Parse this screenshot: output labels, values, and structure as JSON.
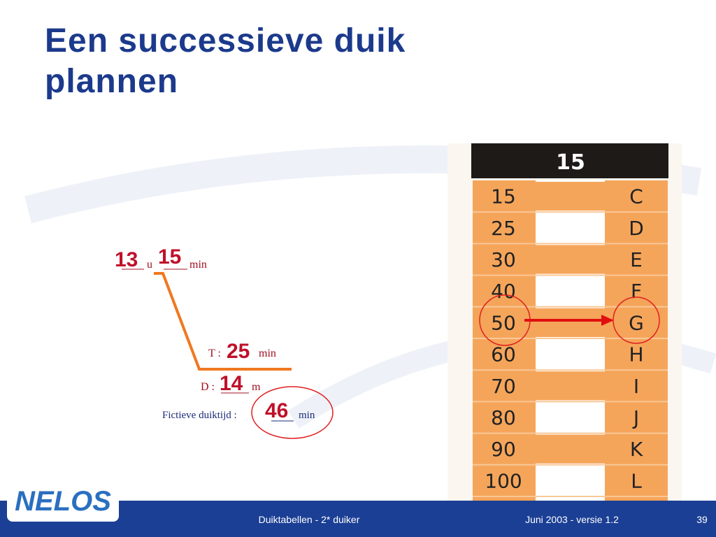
{
  "header": {
    "title": "Een successieve duik plannen"
  },
  "profile": {
    "start_hours": "13",
    "hours_unit": "u",
    "start_minutes": "15",
    "minutes_unit": "min",
    "time_label": "T :",
    "time": "25",
    "time_unit": "min",
    "depth_label": "D :",
    "depth": "14",
    "depth_unit": "m",
    "fictive_label": "Fictieve duiktijd :",
    "fictive_time": "46",
    "fictive_unit": "min"
  },
  "table": {
    "header": "15",
    "rows": [
      [
        "15",
        "C"
      ],
      [
        "25",
        "D"
      ],
      [
        "30",
        "E"
      ],
      [
        "40",
        "F"
      ],
      [
        "50",
        "G"
      ],
      [
        "60",
        "H"
      ],
      [
        "70",
        "I"
      ],
      [
        "80",
        "J"
      ],
      [
        "90",
        "K"
      ],
      [
        "100",
        "L"
      ]
    ]
  },
  "footer": {
    "logo": "NELOS",
    "course": "Duiktabellen - 2* duiker",
    "version": "Juni 2003 - versie 1.2",
    "page": "39"
  }
}
